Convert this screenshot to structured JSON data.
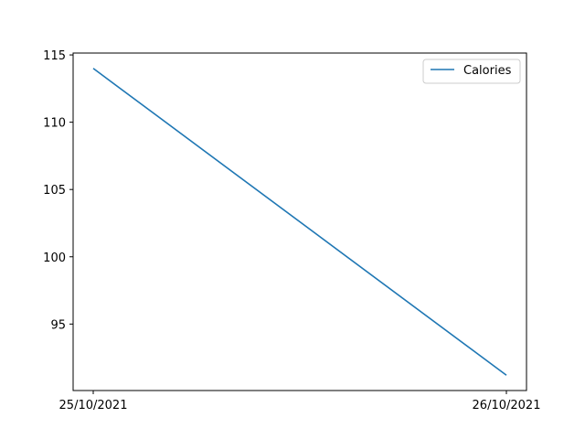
{
  "chart_data": {
    "type": "line",
    "title": "",
    "xlabel": "",
    "ylabel": "",
    "categories": [
      "25/10/2021",
      "26/10/2021"
    ],
    "series": [
      {
        "name": "Calories",
        "color": "#1f77b4",
        "values": [
          114.0,
          91.2
        ]
      }
    ],
    "y_ticks": [
      95,
      100,
      105,
      110,
      115
    ],
    "ylim": [
      90.06,
      115.14
    ],
    "grid": false,
    "legend_position": "top-right"
  }
}
